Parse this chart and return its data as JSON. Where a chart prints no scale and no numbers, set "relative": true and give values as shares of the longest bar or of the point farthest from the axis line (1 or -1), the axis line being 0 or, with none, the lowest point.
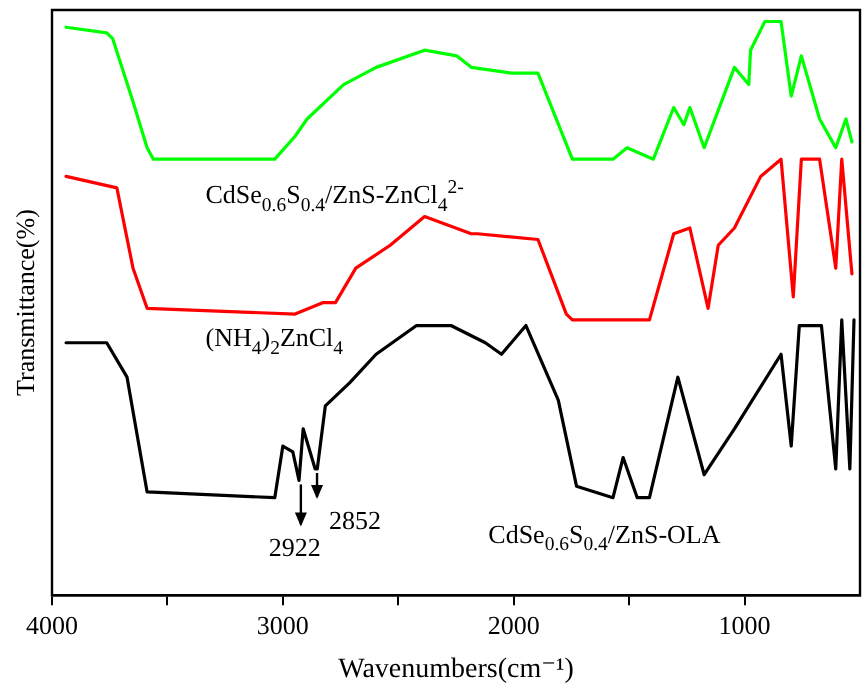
{
  "chart_data": {
    "type": "line",
    "relative": true,
    "xlabel": "Wavenumbers(cm⁻¹)",
    "ylabel": "Transmittance(%)",
    "xlim": [
      4000,
      500
    ],
    "xticks": [
      4000,
      {
        "value": 3500,
        "label": null
      },
      3000,
      {
        "value": 2500,
        "label": null
      },
      2000,
      {
        "value": 1500,
        "label": null
      },
      1000
    ],
    "grid": false,
    "legend": false,
    "marker": "none",
    "line_style": "solid",
    "series": [
      {
        "name": "CdSe$_{0.6}$S$_{0.4}$/ZnS-ZnCl$_{4}$$^{2-}$",
        "color": "#00ff00",
        "x": [
          3939,
          3763,
          3737,
          3649,
          3588,
          3561,
          3035,
          2947,
          2895,
          2737,
          2596,
          2386,
          2246,
          2184,
          2010,
          1895,
          1746,
          1570,
          1509,
          1395,
          1307,
          1263,
          1237,
          1175,
          1044,
          982,
          974,
          912,
          842,
          798,
          754,
          675,
          605,
          561,
          535
        ],
        "values": [
          0.99,
          0.98,
          0.97,
          0.86,
          0.78,
          0.76,
          0.76,
          0.8,
          0.83,
          0.89,
          0.92,
          0.95,
          0.94,
          0.92,
          0.91,
          0.91,
          0.76,
          0.76,
          0.78,
          0.76,
          0.85,
          0.82,
          0.85,
          0.78,
          0.92,
          0.89,
          0.95,
          1,
          1,
          0.87,
          0.94,
          0.83,
          0.78,
          0.83,
          0.79
        ]
      },
      {
        "name": "(NH$_{4}$)$_{2}$ZnCl$_{4}$",
        "color": "#ff0000",
        "x": [
          3939,
          3719,
          3649,
          3588,
          2947,
          2825,
          2772,
          2684,
          2535,
          2386,
          2184,
          2158,
          1895,
          1772,
          1746,
          1412,
          1307,
          1237,
          1158,
          1114,
          1044,
          930,
          842,
          789,
          754,
          675,
          605,
          579,
          535
        ],
        "values": [
          0.73,
          0.71,
          0.57,
          0.5,
          0.49,
          0.51,
          0.51,
          0.57,
          0.61,
          0.66,
          0.63,
          0.63,
          0.62,
          0.49,
          0.48,
          0.48,
          0.63,
          0.64,
          0.5,
          0.61,
          0.64,
          0.73,
          0.76,
          0.52,
          0.76,
          0.76,
          0.57,
          0.76,
          0.56
        ]
      },
      {
        "name": "CdSe$_{0.6}$S$_{0.4}$/ZnS-OLA",
        "color": "#000000",
        "x": [
          3939,
          3763,
          3675,
          3588,
          3035,
          3000,
          2957,
          2930,
          2912,
          2860,
          2851,
          2816,
          2711,
          2596,
          2421,
          2272,
          2123,
          2053,
          1947,
          1807,
          1728,
          1570,
          1526,
          1465,
          1412,
          1289,
          1175,
          1044,
          842,
          798,
          763,
          667,
          605,
          579,
          544,
          526
        ],
        "values": [
          0.44,
          0.44,
          0.38,
          0.18,
          0.17,
          0.26,
          0.25,
          0.2,
          0.29,
          0.22,
          0.22,
          0.33,
          0.37,
          0.42,
          0.47,
          0.47,
          0.44,
          0.42,
          0.47,
          0.34,
          0.19,
          0.17,
          0.24,
          0.17,
          0.17,
          0.38,
          0.21,
          0.29,
          0.42,
          0.26,
          0.47,
          0.47,
          0.22,
          0.48,
          0.22,
          0.48
        ]
      }
    ],
    "annotations": [
      {
        "text": "2922",
        "x": 2922,
        "y": 0.2
      },
      {
        "text": "2852",
        "x": 2852,
        "y": 0.22
      }
    ]
  }
}
